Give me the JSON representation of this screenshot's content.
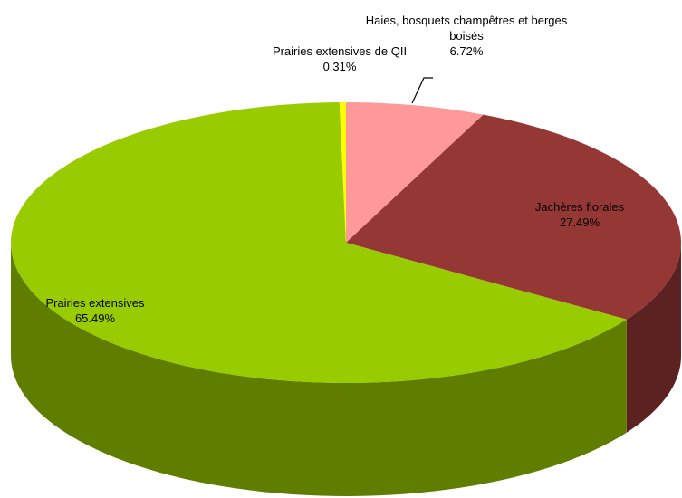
{
  "chart_data": {
    "type": "pie",
    "categories": [
      "Haies, bosquets champêtres et berges boisés",
      "Jachères florales",
      "Prairies extensives",
      "Prairies extensives de QII"
    ],
    "values": [
      6.72,
      27.49,
      65.49,
      0.31
    ],
    "value_labels": [
      "6.72%",
      "27.49%",
      "65.49%",
      "0.31%"
    ],
    "colors": [
      "#ff9999",
      "#953735",
      "#99cc00",
      "#ffff00"
    ]
  }
}
